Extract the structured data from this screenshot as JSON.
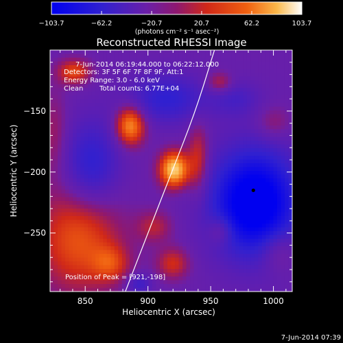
{
  "chart_data": {
    "type": "heatmap",
    "title": "Reconstructed RHESSI Image",
    "xlabel": "Heliocentric X (arcsec)",
    "ylabel": "Heliocentric Y (arcsec)",
    "xlim": [
      822,
      1015
    ],
    "ylim": [
      -298,
      -100
    ],
    "x_ticks": [
      850,
      900,
      950,
      1000
    ],
    "y_ticks": [
      -150,
      -200,
      -250
    ],
    "colorbar": {
      "range": [
        -103.7,
        103.7
      ],
      "tick_labels": [
        "-103.7",
        "-62.2",
        "-20.7",
        "20.7",
        "62.2",
        "103.7"
      ],
      "units": "(photons cm⁻² s⁻¹ asec⁻²)"
    },
    "annotations": {
      "time_range": "7-Jun-2014 06:19:44.000 to 06:22:12.000",
      "detectors": "Detectors: 3F 5F 6F 7F 8F 9F, Att:1",
      "energy_range": "Energy Range: 3.0 - 6.0 keV",
      "clean": "Clean",
      "total_counts": "Total counts: 6.77E+04",
      "peak": "Position of Peak = [921,-198]"
    },
    "peak": [
      921,
      -198
    ],
    "min_marker": [
      984,
      -215
    ],
    "limb": [
      [
        953,
        -100
      ],
      [
        938,
        -150
      ],
      [
        919,
        -200
      ],
      [
        900,
        -250
      ],
      [
        882,
        -298
      ]
    ],
    "sources": [
      {
        "x": 921,
        "y": -198,
        "sx": 8,
        "sy": 10,
        "amp": 105
      },
      {
        "x": 886,
        "y": -162,
        "sx": 8,
        "sy": 11,
        "amp": 82
      },
      {
        "x": 841,
        "y": -118,
        "sx": 9,
        "sy": 7,
        "amp": 52
      },
      {
        "x": 940,
        "y": -190,
        "sx": 6,
        "sy": 20,
        "amp": 42
      },
      {
        "x": 957,
        "y": -127,
        "sx": 7,
        "sy": 6,
        "amp": 35
      },
      {
        "x": 845,
        "y": -255,
        "sx": 23,
        "sy": 30,
        "amp": 58
      },
      {
        "x": 870,
        "y": -275,
        "sx": 10,
        "sy": 10,
        "amp": 38
      },
      {
        "x": 920,
        "y": -275,
        "sx": 9,
        "sy": 9,
        "amp": 40
      },
      {
        "x": 905,
        "y": -245,
        "sx": 10,
        "sy": 9,
        "amp": 30
      },
      {
        "x": 958,
        "y": -248,
        "sx": 7,
        "sy": 8,
        "amp": 30
      },
      {
        "x": 1004,
        "y": -265,
        "sx": 10,
        "sy": 12,
        "amp": 28
      },
      {
        "x": 1000,
        "y": -160,
        "sx": 10,
        "sy": 10,
        "amp": 22
      },
      {
        "x": 825,
        "y": -170,
        "sx": 8,
        "sy": 25,
        "amp": 24
      },
      {
        "x": 985,
        "y": -225,
        "sx": 24,
        "sy": 30,
        "amp": -108
      },
      {
        "x": 855,
        "y": -195,
        "sx": 16,
        "sy": 26,
        "amp": -48
      },
      {
        "x": 915,
        "y": -140,
        "sx": 22,
        "sy": 14,
        "amp": -45
      },
      {
        "x": 970,
        "y": -140,
        "sx": 14,
        "sy": 10,
        "amp": -25
      },
      {
        "x": 893,
        "y": -292,
        "sx": 7,
        "sy": 6,
        "amp": -35
      }
    ],
    "background": -18
  },
  "footer": {
    "timestamp": "7-Jun-2014 07:39"
  }
}
